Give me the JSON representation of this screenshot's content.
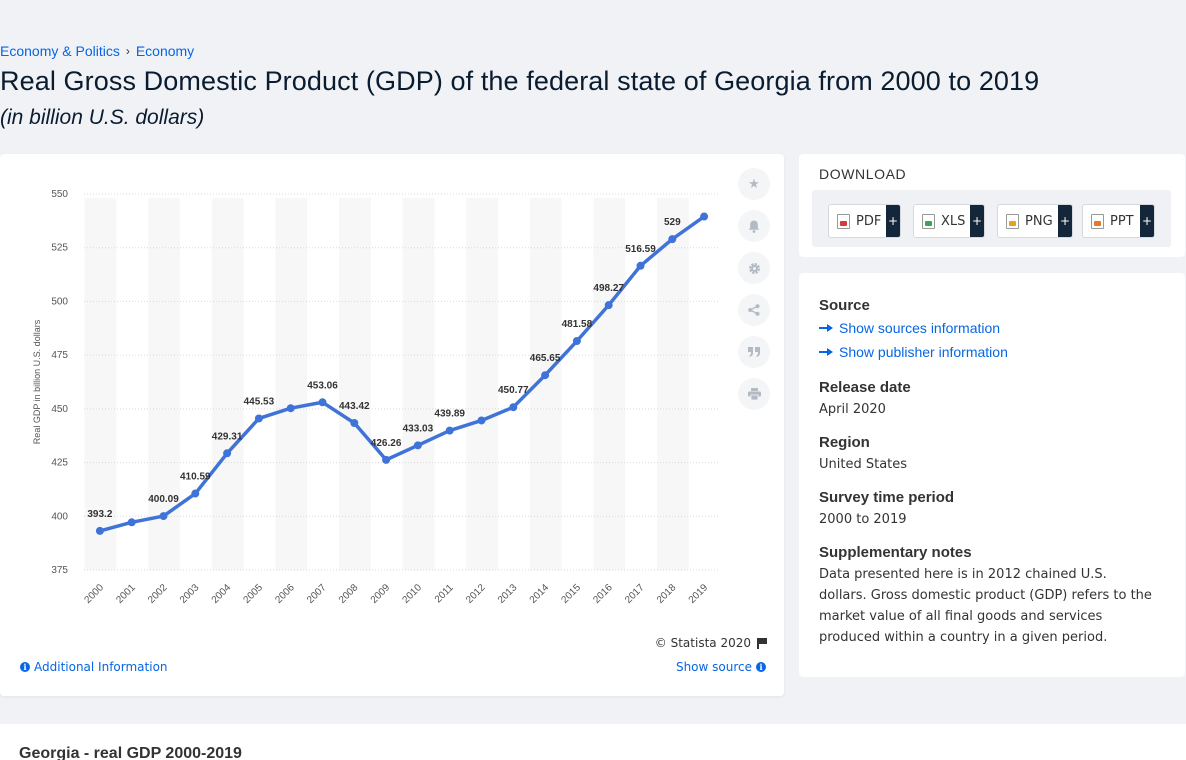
{
  "breadcrumb": {
    "item1": "Economy & Politics",
    "sep": "›",
    "item2": "Economy"
  },
  "title": "Real Gross Domestic Product (GDP) of the federal state of Georgia from 2000 to 2019",
  "subtitle": "(in billion U.S. dollars)",
  "chart_data": {
    "type": "line",
    "categories": [
      "2000",
      "2001",
      "2002",
      "2003",
      "2004",
      "2005",
      "2006",
      "2007",
      "2008",
      "2009",
      "2010",
      "2011",
      "2012",
      "2013",
      "2014",
      "2015",
      "2016",
      "2017",
      "2018",
      "2019"
    ],
    "values": [
      393.2,
      397.2,
      400.09,
      410.59,
      429.31,
      445.53,
      450.3,
      453.06,
      443.42,
      426.26,
      433.03,
      439.89,
      444.6,
      450.77,
      465.65,
      481.58,
      498.27,
      516.59,
      529,
      539.5
    ],
    "labels": [
      "393.2",
      "",
      "400.09",
      "410.59",
      "429.31",
      "445.53",
      "",
      "453.06",
      "443.42",
      "426.26",
      "433.03",
      "439.89",
      "",
      "450.77",
      "465.65",
      "481.58",
      "498.27",
      "516.59",
      "529",
      ""
    ],
    "ylabel": "Real GDP in billion U.S. dollars",
    "yticks": [
      "375",
      "400",
      "425",
      "450",
      "475",
      "500",
      "525",
      "550"
    ],
    "ylim": [
      375,
      550
    ],
    "grid": true,
    "color": "#3f73d8"
  },
  "toolbar": {
    "icons": [
      "star-icon",
      "bell-icon",
      "gear-icon",
      "share-icon",
      "quote-icon",
      "print-icon"
    ]
  },
  "copyright": "© Statista 2020",
  "additional_info": "Additional Information",
  "show_source": "Show source",
  "download": {
    "title": "DOWNLOAD",
    "buttons": [
      {
        "label": "PDF",
        "plus": "+",
        "color": "#d63b3b"
      },
      {
        "label": "XLS",
        "plus": "+",
        "color": "#3aa552"
      },
      {
        "label": "PNG",
        "plus": "+",
        "color": "#e3a21a"
      },
      {
        "label": "PPT",
        "plus": "+",
        "color": "#e3792a"
      }
    ]
  },
  "info": {
    "source_h": "Source",
    "show_sources": "Show sources information",
    "show_publisher": "Show publisher information",
    "release_h": "Release date",
    "release_v": "April 2020",
    "region_h": "Region",
    "region_v": "United States",
    "survey_h": "Survey time period",
    "survey_v": "2000 to 2019",
    "notes_h": "Supplementary notes",
    "notes_v": "Data presented here is in 2012 chained U.S. dollars. Gross domestic product (GDP) refers to the market value of all final goods and services produced within a country in a given period."
  },
  "bottom_title": "Georgia - real GDP 2000-2019"
}
